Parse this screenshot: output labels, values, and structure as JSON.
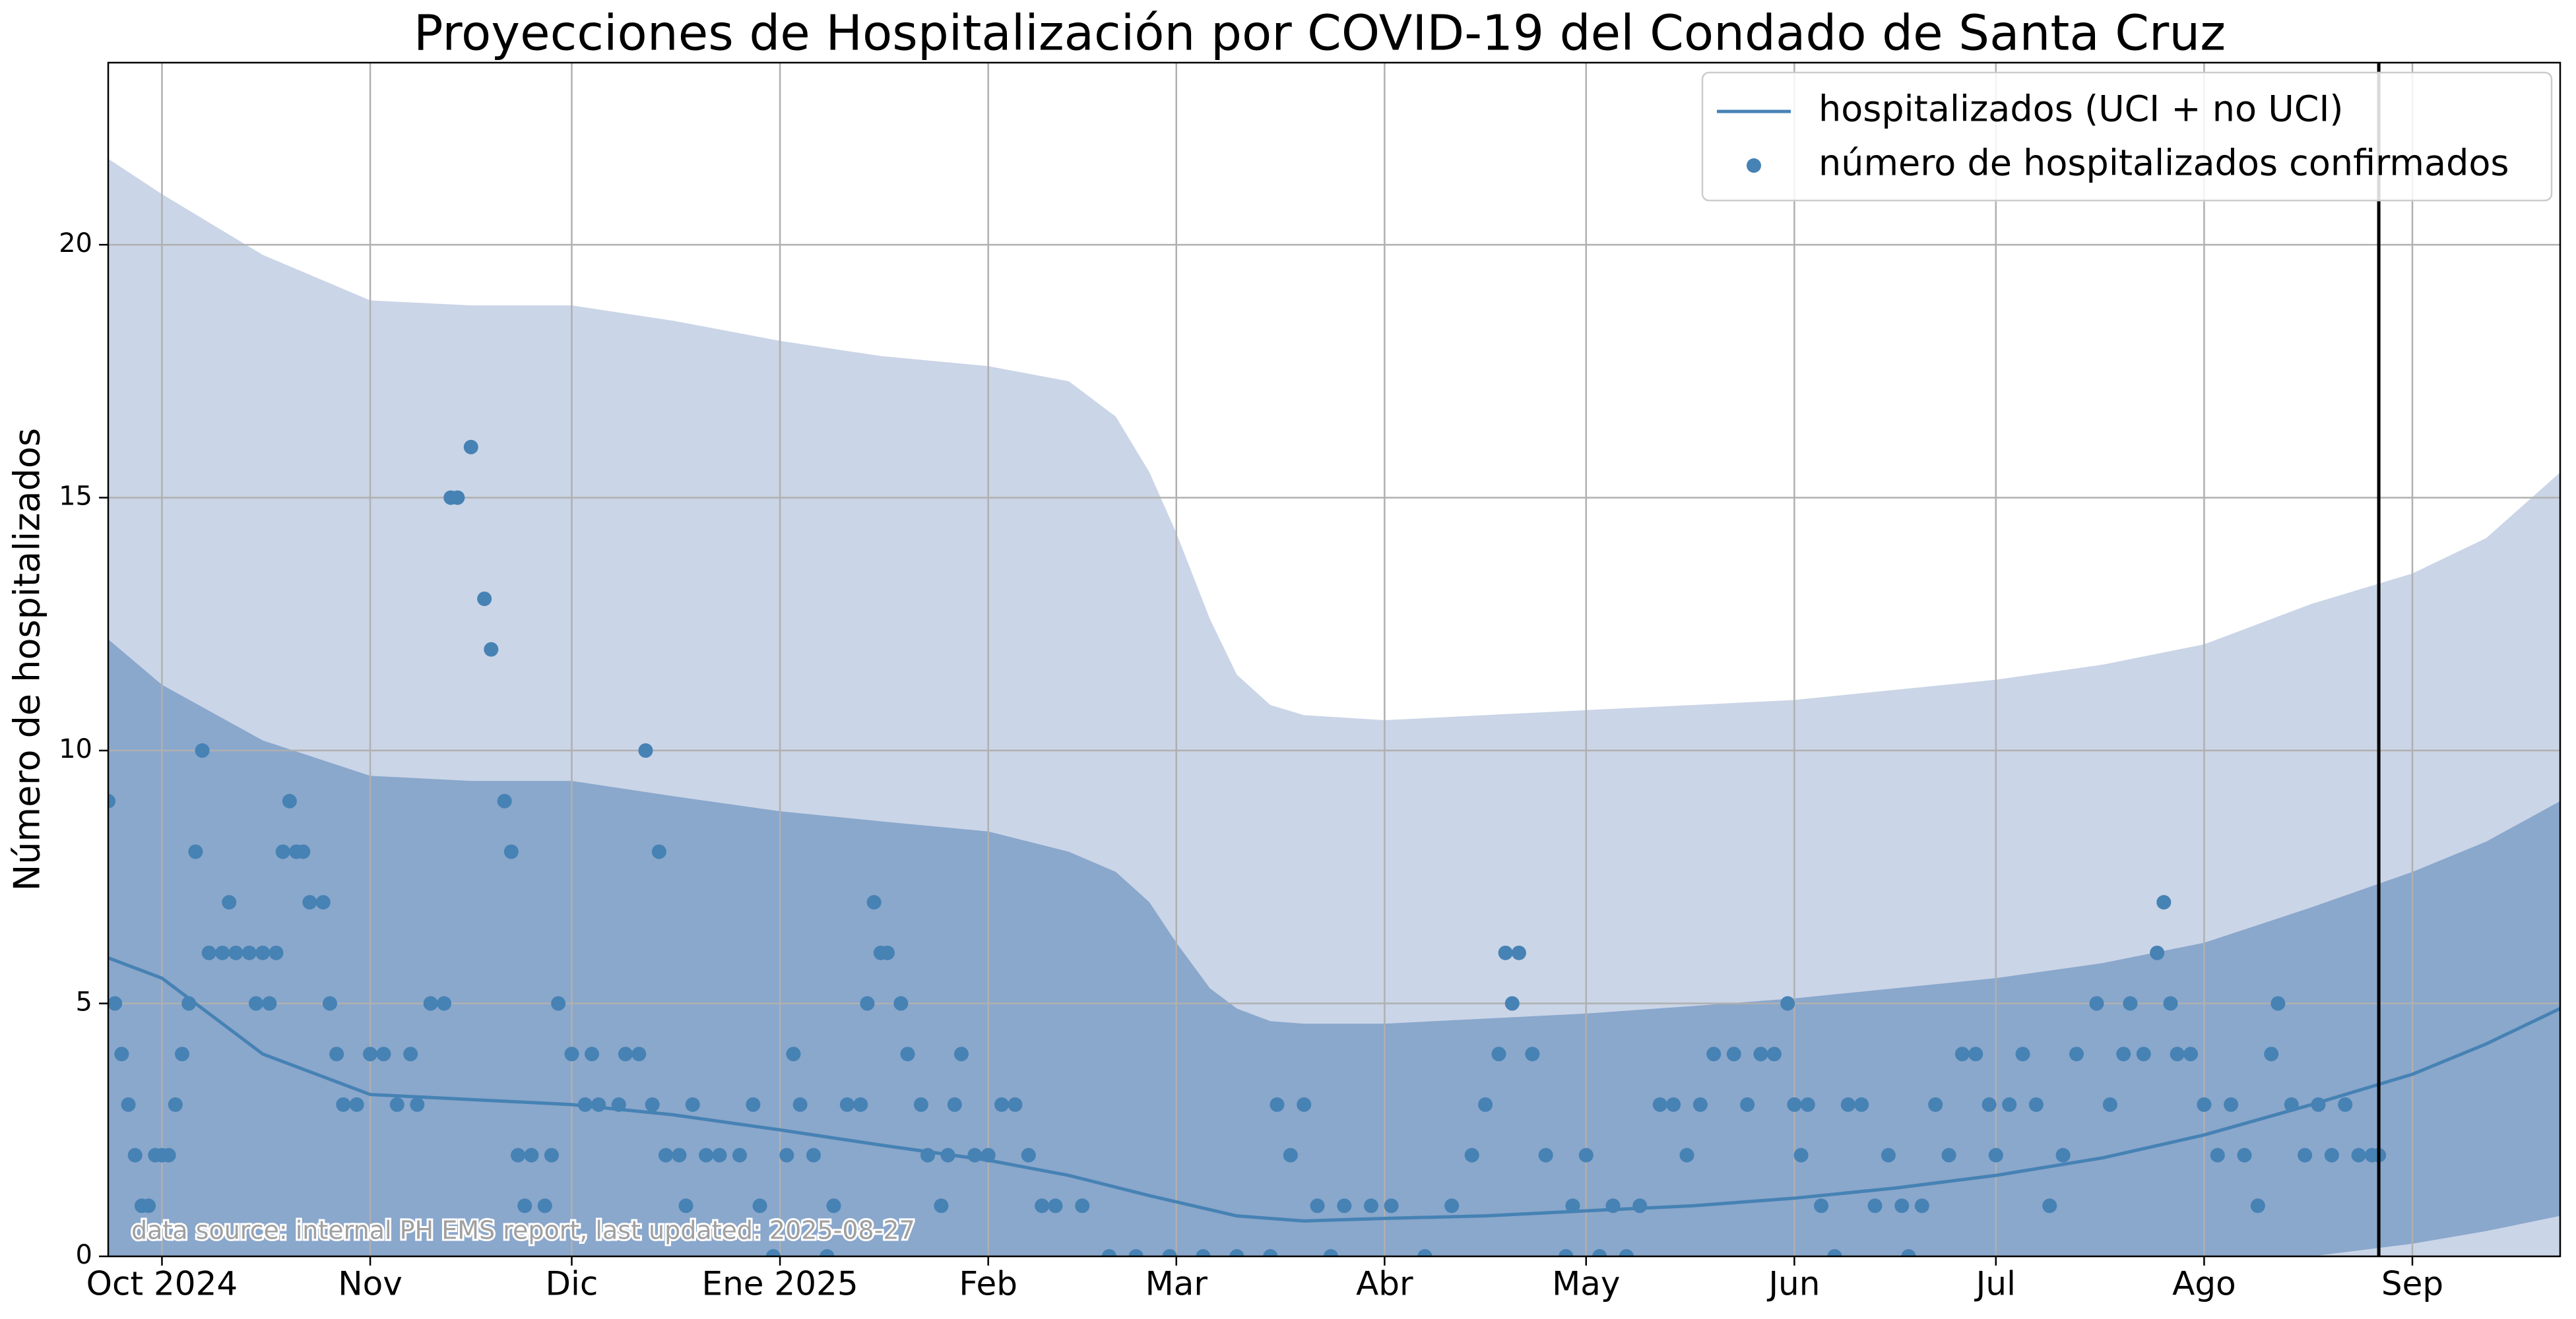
{
  "chart_data": {
    "type": "line",
    "title": "Proyecciones de Hospitalización por COVID-19 del Condado de Santa Cruz",
    "ylabel": "Número de hospitalizados",
    "annotation": "data source: internal PH EMS report, last updated: 2025-08-27",
    "xlim": [
      -8,
      357
    ],
    "ylim": [
      0,
      23.6
    ],
    "xticks": [
      {
        "value": 0,
        "label": "Oct 2024"
      },
      {
        "value": 31,
        "label": "Nov"
      },
      {
        "value": 61,
        "label": "Dic"
      },
      {
        "value": 92,
        "label": "Ene 2025"
      },
      {
        "value": 123,
        "label": "Feb"
      },
      {
        "value": 151,
        "label": "Mar"
      },
      {
        "value": 182,
        "label": "Abr"
      },
      {
        "value": 212,
        "label": "May"
      },
      {
        "value": 243,
        "label": "Jun"
      },
      {
        "value": 273,
        "label": "Jul"
      },
      {
        "value": 304,
        "label": "Ago"
      },
      {
        "value": 335,
        "label": "Sep"
      }
    ],
    "yticks": [
      0,
      5,
      10,
      15,
      20
    ],
    "grid": true,
    "legend": "upper right",
    "vline": {
      "x": 330,
      "color": "#000000"
    },
    "bands": [
      {
        "color": "#cad5e7",
        "x": [
          -8,
          0,
          15,
          31,
          46,
          61,
          76,
          92,
          107,
          123,
          135,
          142,
          147,
          151,
          156,
          160,
          165,
          170,
          182,
          197,
          212,
          228,
          243,
          258,
          273,
          289,
          304,
          320,
          335,
          346,
          357
        ],
        "lower": [
          0,
          0,
          0,
          0,
          0,
          0,
          0,
          0,
          0,
          0,
          0,
          0,
          0,
          0,
          0,
          0,
          0,
          0,
          0,
          0,
          0,
          0,
          0,
          0,
          0,
          0,
          0,
          0,
          0,
          0,
          0
        ],
        "upper": [
          21.7,
          21.0,
          19.8,
          18.9,
          18.8,
          18.8,
          18.5,
          18.1,
          17.8,
          17.6,
          17.3,
          16.6,
          15.5,
          14.3,
          12.6,
          11.5,
          10.9,
          10.7,
          10.6,
          10.7,
          10.8,
          10.9,
          11.0,
          11.2,
          11.4,
          11.7,
          12.1,
          12.9,
          13.5,
          14.2,
          15.5
        ]
      },
      {
        "color": "#8aa7cc",
        "x": [
          -8,
          0,
          15,
          31,
          46,
          61,
          76,
          92,
          107,
          123,
          135,
          142,
          147,
          151,
          156,
          160,
          165,
          170,
          182,
          197,
          212,
          228,
          243,
          258,
          273,
          289,
          304,
          320,
          335,
          346,
          357
        ],
        "lower": [
          0,
          0,
          0,
          0,
          0,
          0,
          0,
          0,
          0,
          0,
          0,
          0,
          0,
          0,
          0,
          0,
          0,
          0,
          0,
          0,
          0,
          0,
          0,
          0,
          0,
          0,
          0,
          0,
          0.25,
          0.5,
          0.8
        ],
        "upper": [
          12.2,
          11.3,
          10.2,
          9.5,
          9.4,
          9.4,
          9.1,
          8.8,
          8.6,
          8.4,
          8.0,
          7.6,
          7.0,
          6.2,
          5.3,
          4.9,
          4.65,
          4.6,
          4.6,
          4.7,
          4.8,
          4.95,
          5.1,
          5.3,
          5.5,
          5.8,
          6.2,
          6.9,
          7.6,
          8.2,
          9.0
        ]
      }
    ],
    "series": [
      {
        "name": "hospitalizados (UCI + no UCI)",
        "type": "line",
        "color": "#4682b4",
        "x": [
          -8,
          0,
          15,
          31,
          46,
          61,
          76,
          92,
          107,
          123,
          135,
          147,
          160,
          170,
          182,
          197,
          212,
          228,
          243,
          258,
          273,
          289,
          304,
          320,
          335,
          346,
          357
        ],
        "values": [
          5.9,
          5.5,
          4.0,
          3.2,
          3.1,
          3.0,
          2.8,
          2.5,
          2.2,
          1.9,
          1.6,
          1.2,
          0.8,
          0.7,
          0.75,
          0.8,
          0.9,
          1.0,
          1.15,
          1.35,
          1.6,
          1.95,
          2.4,
          3.0,
          3.6,
          4.2,
          4.9
        ]
      },
      {
        "name": "número de hospitalizados confirmados",
        "type": "scatter",
        "color": "#4682b4",
        "x": [
          -8,
          -7,
          -6,
          -5,
          -4,
          -3,
          -2,
          -1,
          0,
          1,
          2,
          3,
          4,
          5,
          6,
          7,
          9,
          10,
          11,
          13,
          14,
          15,
          16,
          17,
          18,
          19,
          20,
          21,
          22,
          24,
          25,
          26,
          27,
          29,
          31,
          33,
          35,
          37,
          38,
          40,
          42,
          43,
          44,
          46,
          48,
          49,
          51,
          52,
          53,
          54,
          55,
          57,
          58,
          59,
          61,
          63,
          64,
          65,
          68,
          69,
          71,
          72,
          73,
          74,
          75,
          77,
          78,
          79,
          81,
          83,
          86,
          88,
          89,
          91,
          93,
          94,
          95,
          97,
          99,
          100,
          102,
          104,
          105,
          106,
          107,
          108,
          110,
          111,
          113,
          114,
          116,
          117,
          118,
          119,
          121,
          123,
          125,
          127,
          129,
          131,
          133,
          137,
          141,
          145,
          150,
          155,
          160,
          165,
          166,
          168,
          170,
          172,
          174,
          176,
          180,
          183,
          188,
          192,
          195,
          197,
          199,
          200,
          201,
          202,
          204,
          206,
          209,
          210,
          212,
          214,
          216,
          218,
          220,
          223,
          225,
          227,
          229,
          231,
          234,
          236,
          238,
          240,
          242,
          243,
          244,
          245,
          247,
          249,
          251,
          253,
          255,
          257,
          259,
          260,
          262,
          264,
          266,
          268,
          270,
          272,
          273,
          275,
          277,
          279,
          281,
          283,
          285,
          288,
          290,
          292,
          293,
          295,
          297,
          298,
          299,
          300,
          302,
          304,
          306,
          308,
          310,
          312,
          314,
          315,
          317,
          319,
          321,
          323,
          325,
          327,
          329,
          330
        ],
        "values": [
          9,
          5,
          4,
          3,
          2,
          1,
          1,
          2,
          2,
          2,
          3,
          4,
          5,
          8,
          10,
          6,
          6,
          7,
          6,
          6,
          5,
          6,
          5,
          6,
          8,
          9,
          8,
          8,
          7,
          7,
          5,
          4,
          3,
          3,
          4,
          4,
          3,
          4,
          3,
          5,
          5,
          15,
          15,
          16,
          13,
          12,
          9,
          8,
          2,
          1,
          2,
          1,
          2,
          5,
          4,
          3,
          4,
          3,
          3,
          4,
          4,
          10,
          3,
          8,
          2,
          2,
          1,
          3,
          2,
          2,
          2,
          3,
          1,
          0,
          2,
          4,
          3,
          2,
          0,
          1,
          3,
          3,
          5,
          7,
          6,
          6,
          5,
          4,
          3,
          2,
          1,
          2,
          3,
          4,
          2,
          2,
          3,
          3,
          2,
          1,
          1,
          1,
          0,
          0,
          0,
          0,
          0,
          0,
          3,
          2,
          3,
          1,
          0,
          1,
          1,
          1,
          0,
          1,
          2,
          3,
          4,
          6,
          5,
          6,
          4,
          2,
          0,
          1,
          2,
          0,
          1,
          0,
          1,
          3,
          3,
          2,
          3,
          4,
          4,
          3,
          4,
          4,
          5,
          3,
          2,
          3,
          1,
          0,
          3,
          3,
          1,
          2,
          1,
          0,
          1,
          3,
          2,
          4,
          4,
          3,
          2,
          3,
          4,
          3,
          1,
          2,
          4,
          5,
          3,
          4,
          5,
          4,
          6,
          7,
          5,
          4,
          4,
          3,
          2,
          3,
          2,
          1,
          4,
          5,
          3,
          2,
          3,
          2,
          3,
          2,
          2,
          2
        ]
      }
    ]
  }
}
